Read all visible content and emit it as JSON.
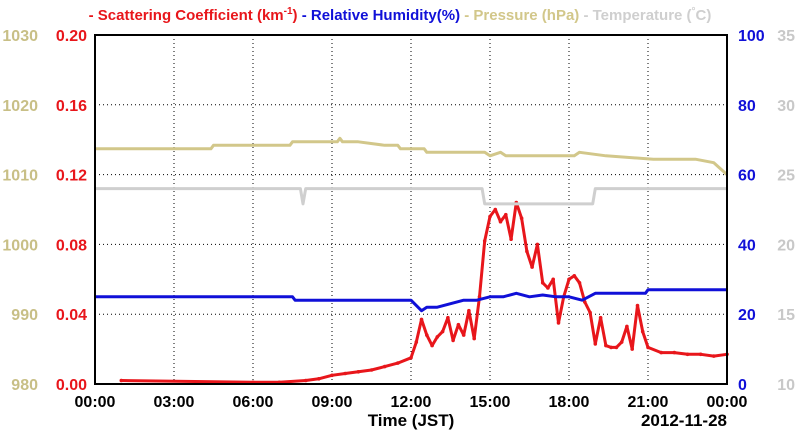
{
  "chart_data": {
    "type": "line",
    "xlabel": "Time (JST)",
    "date_label": "2012-11-28",
    "x_tick_labels": [
      "00:00",
      "03:00",
      "06:00",
      "09:00",
      "12:00",
      "15:00",
      "18:00",
      "21:00",
      "00:00"
    ],
    "xlim_hours": [
      0,
      24
    ],
    "grid": true,
    "legend": {
      "position": "top",
      "entries": [
        {
          "prefix": "- ",
          "text": "Scattering Coefficient (km",
          "superscript": "-1",
          "suffix": ")",
          "color": "#e8161b"
        },
        {
          "prefix": "- ",
          "text": "Relative Humidity(%)",
          "color": "#1010d8"
        },
        {
          "prefix": "- ",
          "text": "Pressure (hPa)",
          "color": "#d2c78a"
        },
        {
          "prefix": "- ",
          "text": "Temperature (",
          "superscript": "°",
          "suffix": "C)",
          "color": "#cfcfcf"
        }
      ]
    },
    "axes": {
      "pressure": {
        "side": "left-outer",
        "color": "#c8bf86",
        "ylim": [
          980,
          1030
        ],
        "ticks": [
          "980",
          "990",
          "1000",
          "1010",
          "1020",
          "1030"
        ]
      },
      "scattering": {
        "side": "left-inner",
        "color": "#e8161b",
        "ylim": [
          0,
          0.2
        ],
        "ticks": [
          "0.00",
          "0.04",
          "0.08",
          "0.12",
          "0.16",
          "0.20"
        ]
      },
      "humidity": {
        "side": "right-inner",
        "color": "#1010d8",
        "ylim": [
          0,
          100
        ],
        "ticks": [
          "0",
          "20",
          "40",
          "60",
          "80",
          "100"
        ]
      },
      "temperature": {
        "side": "right-outer",
        "color": "#c8c8c8",
        "ylim": [
          10,
          35
        ],
        "ticks": [
          "10",
          "15",
          "20",
          "25",
          "30",
          "35"
        ]
      }
    },
    "series": [
      {
        "name": "Scattering Coefficient",
        "axis": "scattering",
        "color": "#e8161b",
        "x": [
          1.0,
          6.0,
          7.0,
          8.0,
          8.5,
          9.0,
          9.5,
          10.0,
          10.5,
          11.0,
          11.5,
          12.0,
          12.2,
          12.4,
          12.6,
          12.8,
          13.0,
          13.2,
          13.4,
          13.6,
          13.8,
          14.0,
          14.2,
          14.4,
          14.6,
          14.8,
          15.0,
          15.2,
          15.4,
          15.6,
          15.8,
          16.0,
          16.2,
          16.4,
          16.6,
          16.8,
          17.0,
          17.2,
          17.4,
          17.6,
          17.8,
          18.0,
          18.2,
          18.4,
          18.6,
          18.8,
          19.0,
          19.2,
          19.4,
          19.6,
          19.8,
          20.0,
          20.2,
          20.4,
          20.6,
          20.8,
          21.0,
          21.5,
          22.0,
          22.5,
          23.0,
          23.5,
          24.0
        ],
        "y": [
          0.002,
          0.001,
          0.001,
          0.002,
          0.003,
          0.005,
          0.006,
          0.007,
          0.008,
          0.01,
          0.012,
          0.015,
          0.024,
          0.037,
          0.028,
          0.022,
          0.027,
          0.03,
          0.038,
          0.025,
          0.034,
          0.028,
          0.042,
          0.026,
          0.05,
          0.082,
          0.096,
          0.1,
          0.093,
          0.097,
          0.083,
          0.104,
          0.095,
          0.076,
          0.067,
          0.08,
          0.058,
          0.055,
          0.06,
          0.035,
          0.05,
          0.06,
          0.062,
          0.058,
          0.047,
          0.041,
          0.023,
          0.038,
          0.022,
          0.021,
          0.021,
          0.024,
          0.033,
          0.02,
          0.045,
          0.03,
          0.021,
          0.018,
          0.018,
          0.017,
          0.017,
          0.016,
          0.017
        ]
      },
      {
        "name": "Relative Humidity",
        "axis": "humidity",
        "color": "#1010d8",
        "x": [
          0,
          7.5,
          7.6,
          10.0,
          12.0,
          12.4,
          12.6,
          13.0,
          13.5,
          14.0,
          14.5,
          15.0,
          15.5,
          16.0,
          16.5,
          17.0,
          17.5,
          18.0,
          18.5,
          19.0,
          20.0,
          20.9,
          21.0,
          22.0,
          23.0,
          24.0
        ],
        "y": [
          25,
          25,
          24,
          24,
          24,
          21,
          22,
          22,
          23,
          24,
          24,
          25,
          25,
          26,
          25,
          25.5,
          25,
          25,
          24,
          26,
          26,
          26,
          27,
          27,
          27,
          27
        ]
      },
      {
        "name": "Pressure",
        "axis": "pressure",
        "color": "#d2c78a",
        "x": [
          0,
          4.4,
          4.5,
          7.4,
          7.5,
          9.2,
          9.3,
          9.4,
          10.0,
          11.0,
          11.5,
          11.6,
          12.5,
          12.6,
          14.8,
          15.0,
          15.4,
          15.6,
          16.1,
          17.5,
          18.2,
          18.4,
          19.4,
          21.2,
          22.8,
          23.5,
          24.0
        ],
        "y": [
          1013.7,
          1013.7,
          1014.2,
          1014.2,
          1014.7,
          1014.7,
          1015.2,
          1014.7,
          1014.7,
          1014.2,
          1014.2,
          1013.7,
          1013.7,
          1013.2,
          1013.2,
          1012.7,
          1013.2,
          1012.7,
          1012.7,
          1012.7,
          1012.7,
          1013.2,
          1012.7,
          1012.2,
          1012.2,
          1011.7,
          1010.0
        ]
      },
      {
        "name": "Temperature",
        "axis": "temperature",
        "color": "#cfcfcf",
        "x": [
          0,
          7.8,
          7.9,
          8.0,
          14.7,
          14.8,
          18.9,
          19.0,
          24.0
        ],
        "y": [
          24.0,
          24.0,
          22.9,
          24.0,
          24.0,
          22.9,
          22.9,
          24.0,
          24.0
        ]
      }
    ]
  }
}
